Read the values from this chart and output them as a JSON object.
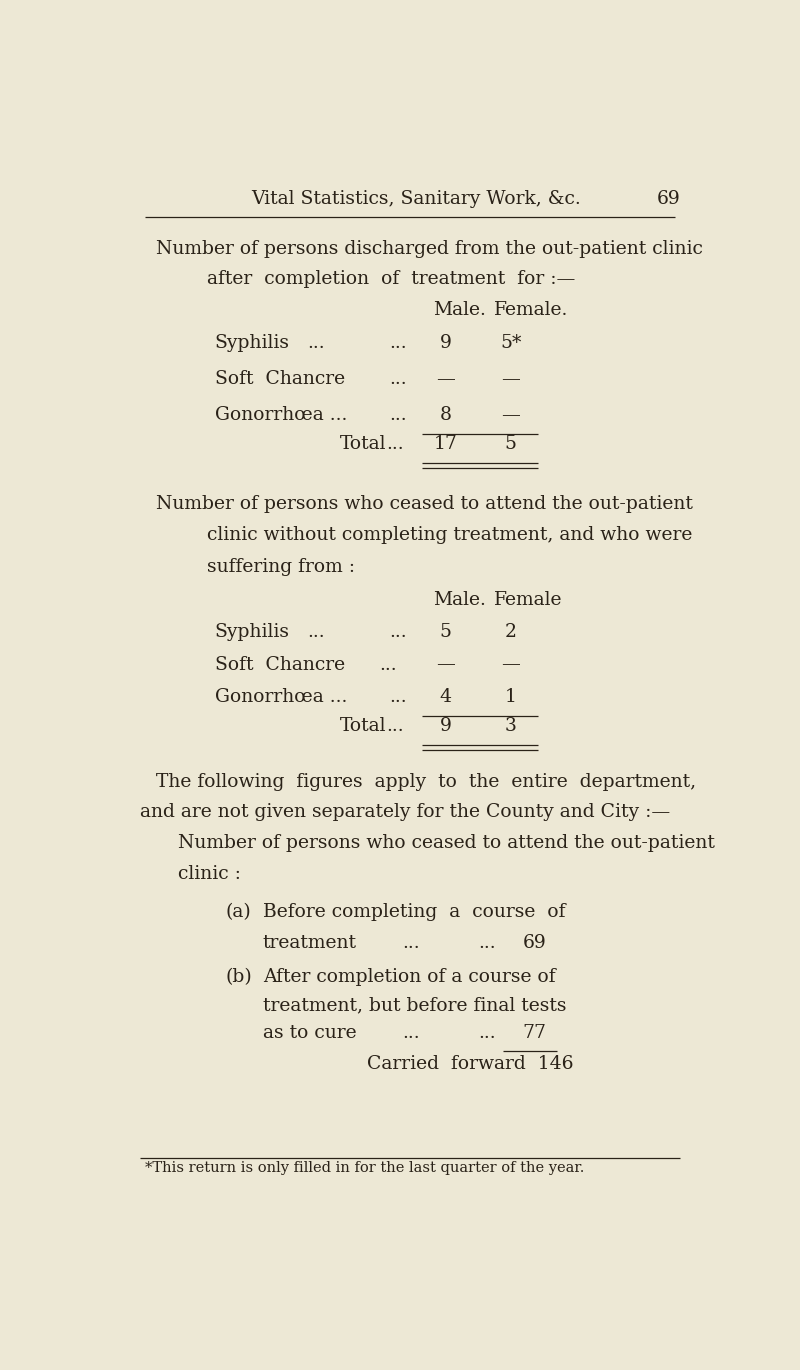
{
  "bg_color": "#ede8d5",
  "text_color": "#2a2218",
  "font_family": "serif",
  "header": "Vital Statistics, Sanitary Work, &c.",
  "page_num": "69",
  "footnote": "*This return is only filled in for the last quarter of the year."
}
